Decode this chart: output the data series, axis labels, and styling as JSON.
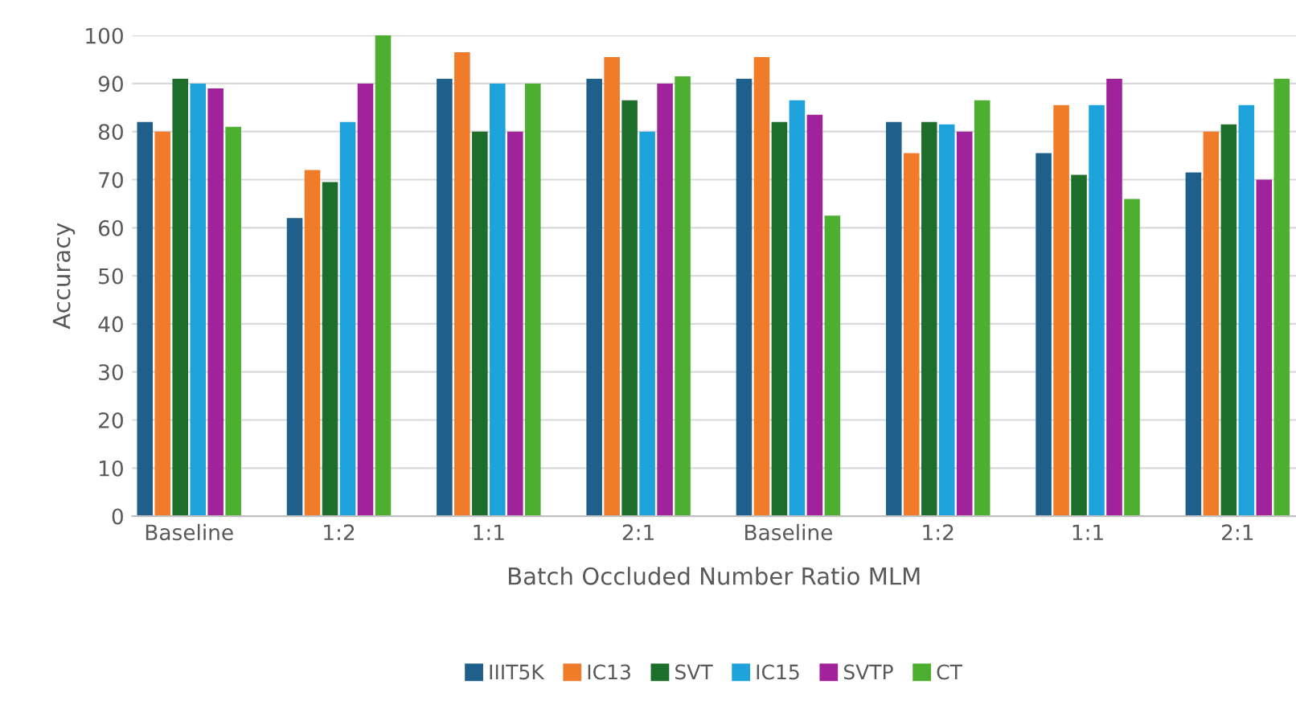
{
  "chart_data": {
    "type": "bar",
    "xlabel": "Batch Occluded Number Ratio MLM",
    "ylabel": "Accuracy",
    "categories": [
      "Baseline",
      "1:2",
      "1:1",
      "2:1",
      "Baseline",
      "1:2",
      "1:1",
      "2:1"
    ],
    "series": [
      {
        "name": "IIIT5K",
        "color": "#1f5f8b",
        "values": [
          82,
          62,
          91,
          91,
          91,
          82,
          75.5,
          71.5
        ]
      },
      {
        "name": "IC13",
        "color": "#f07c2a",
        "values": [
          80,
          72,
          96.5,
          95.5,
          95.5,
          75.5,
          85.5,
          80
        ]
      },
      {
        "name": "SVT",
        "color": "#1d6e2a",
        "values": [
          91,
          69.5,
          80,
          86.5,
          82,
          82,
          71,
          81.5
        ]
      },
      {
        "name": "IC15",
        "color": "#1ea2db",
        "values": [
          90,
          82,
          90,
          80,
          86.5,
          81.5,
          85.5,
          85.5
        ]
      },
      {
        "name": "SVTP",
        "color": "#a0239b",
        "values": [
          89,
          90,
          80,
          90,
          83.5,
          80,
          91,
          70
        ]
      },
      {
        "name": "CT",
        "color": "#4caf2f",
        "values": [
          81,
          100,
          90,
          91.5,
          62.5,
          86.5,
          66,
          91
        ]
      }
    ],
    "ylim": [
      0,
      100
    ],
    "yticks": [
      0,
      10,
      20,
      30,
      40,
      50,
      60,
      70,
      80,
      90,
      100
    ],
    "grid": "y",
    "legend": "bottom"
  }
}
